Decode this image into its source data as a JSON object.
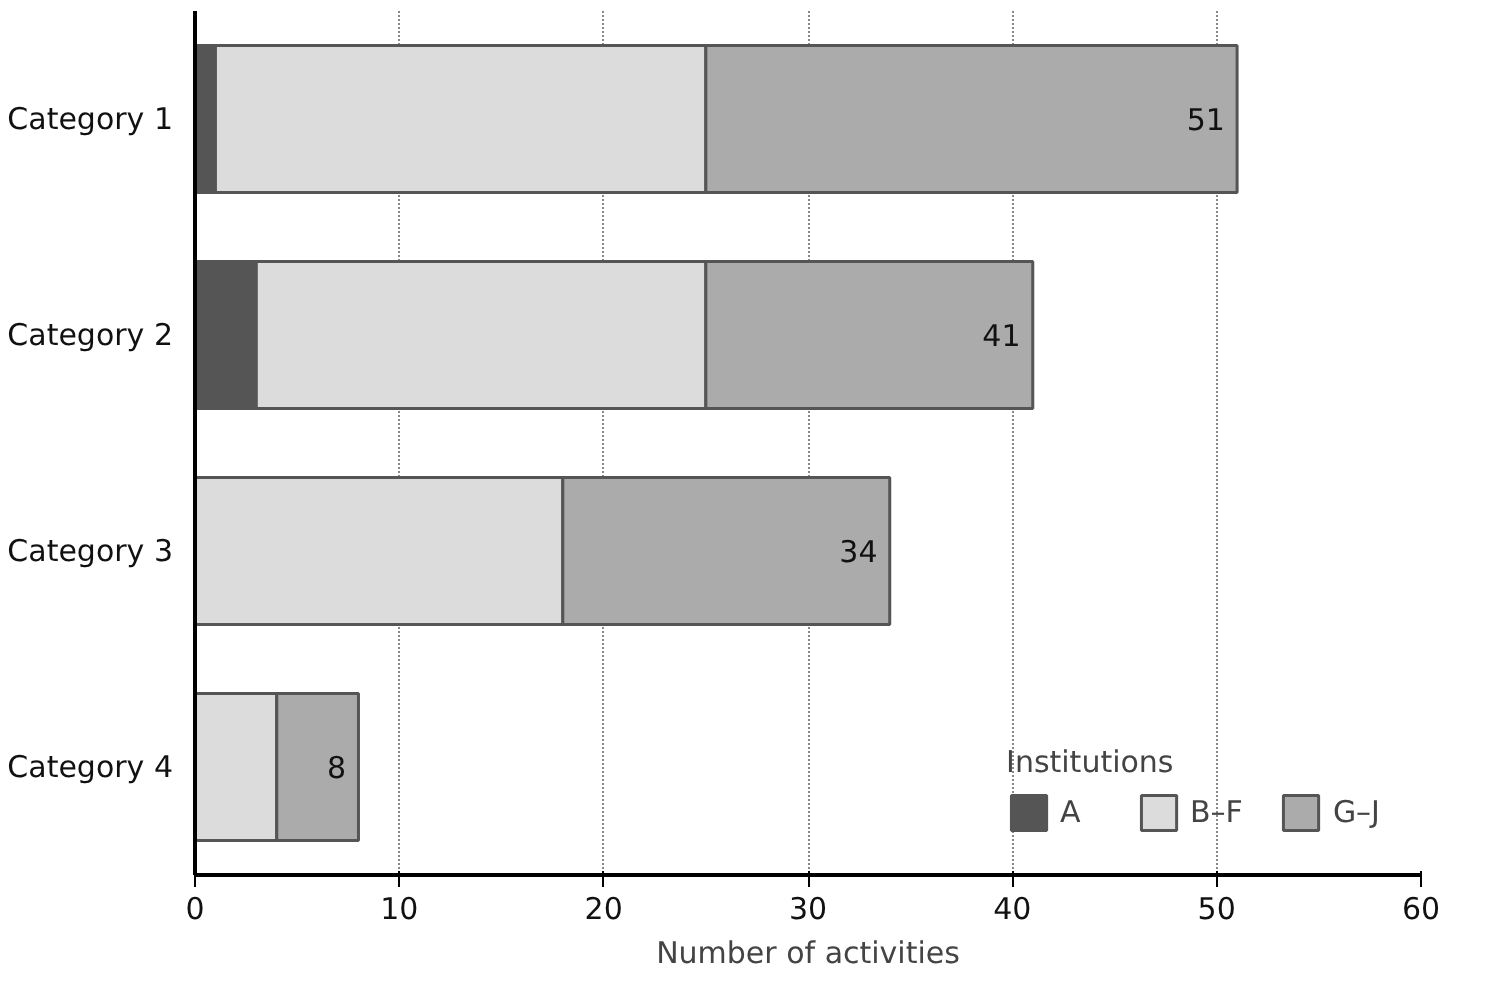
{
  "chart_data": {
    "type": "bar",
    "orientation": "horizontal",
    "stacked": true,
    "xlabel": "Number of activities",
    "legend_title": "Institutions",
    "categories": [
      "Category 1",
      "Category 2",
      "Category 3",
      "Category 4"
    ],
    "series": [
      {
        "name": "A",
        "color": "#555555",
        "values": [
          1,
          3,
          0,
          0
        ]
      },
      {
        "name": "B–F",
        "color": "#dcdcdc",
        "values": [
          24,
          22,
          18,
          4
        ]
      },
      {
        "name": "G–J",
        "color": "#ababab",
        "values": [
          26,
          16,
          16,
          4
        ]
      }
    ],
    "totals": [
      "51",
      "41",
      "34",
      "8"
    ],
    "xlim": [
      0,
      60
    ],
    "xticks": [
      0,
      10,
      20,
      30,
      40,
      50,
      60
    ],
    "grid": "x",
    "legend": "bottom right"
  }
}
